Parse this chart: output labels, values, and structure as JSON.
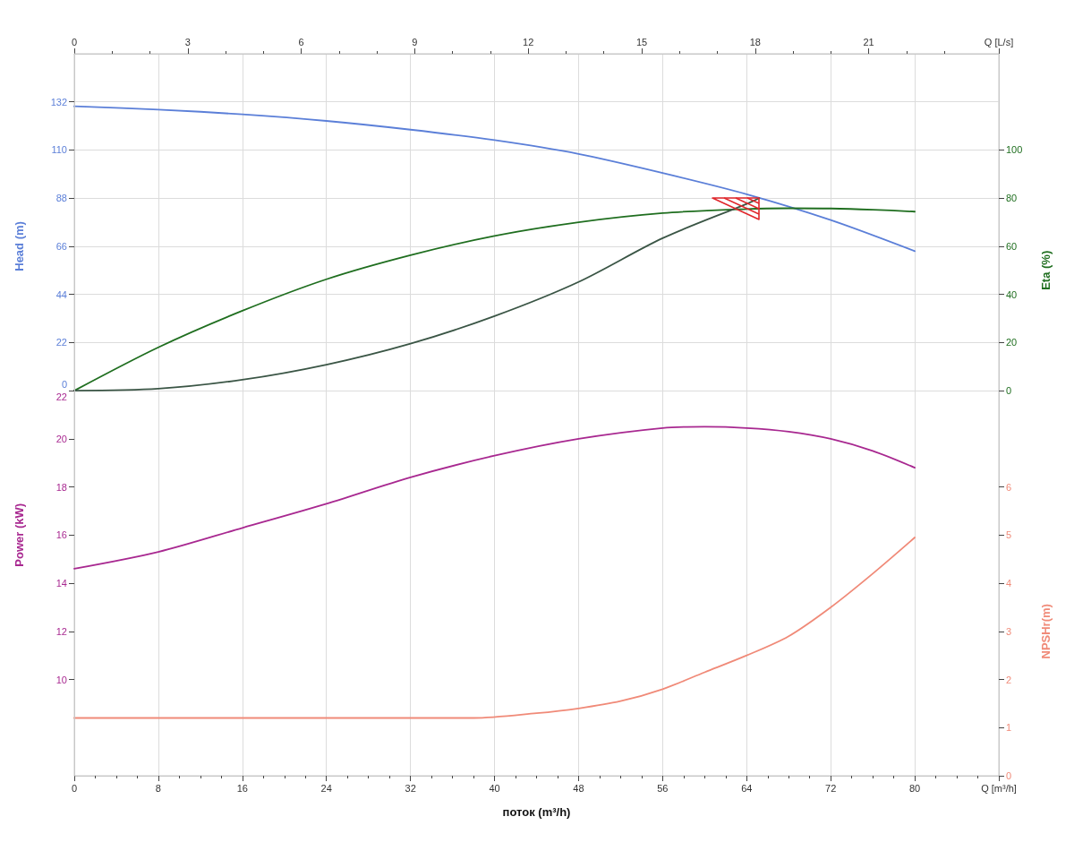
{
  "chart_data": [
    {
      "type": "line",
      "xlabel": "поток (m³/h)",
      "ylabel": "Head (m)",
      "y2label": "Eta (%)",
      "y3label": "NPSHr(m)",
      "grid": true,
      "xlim": [
        0,
        88
      ],
      "xticks": [
        0,
        8,
        16,
        24,
        32,
        40,
        48,
        56,
        64,
        72,
        80,
        {
          "value": 88,
          "label": "Q [m³/h]"
        }
      ],
      "x2lim": [
        0,
        24.44
      ],
      "x2ticks": [
        0,
        3,
        6,
        9,
        12,
        15,
        18,
        21,
        {
          "value": 24.44,
          "label": "Q [L/s]"
        }
      ],
      "ylim": [
        -176,
        154
      ],
      "yticks": [
        0,
        22,
        44,
        66,
        88,
        110,
        132
      ],
      "y2lim": [
        -160,
        140
      ],
      "y2ticks": [
        0,
        20,
        40,
        60,
        80,
        100
      ],
      "y3lim": [
        0,
        15
      ],
      "y3ticks": [
        0,
        1,
        2,
        3,
        4,
        5,
        6
      ],
      "series": [
        {
          "color": "#5b7fd8",
          "x": [
            0,
            8,
            16,
            24,
            32,
            40,
            48,
            56,
            64,
            72,
            80
          ],
          "values": [
            130,
            128.5,
            126.3,
            123.3,
            119.3,
            114.5,
            108.2,
            99.5,
            89.8,
            78,
            63.8
          ]
        },
        {
          "color": "#1f6e1f",
          "axis": "y2",
          "x": [
            0,
            8,
            16,
            24,
            32,
            40,
            48,
            56,
            64,
            68,
            72,
            76,
            80
          ],
          "values": [
            0,
            18,
            33.2,
            46.3,
            56.3,
            64.3,
            70,
            73.8,
            75.5,
            75.8,
            75.7,
            75.2,
            74.4
          ]
        },
        {
          "color": "#3a5545",
          "x": [
            0,
            8,
            16,
            24,
            32,
            40,
            48,
            56,
            64,
            65.2
          ],
          "values": [
            0,
            0.9,
            5,
            11.9,
            21.5,
            34.1,
            49.7,
            69.7,
            85.4,
            88
          ]
        },
        {
          "color": "#f08a78",
          "axis": "y3",
          "x": [
            0,
            8,
            16,
            24,
            32,
            38,
            44,
            48,
            52,
            56,
            60,
            64,
            68,
            72,
            76,
            80
          ],
          "values": [
            1.2,
            1.2,
            1.2,
            1.2,
            1.2,
            1.2,
            1.3,
            1.4,
            1.55,
            1.8,
            2.15,
            2.5,
            2.9,
            3.5,
            4.2,
            4.95
          ]
        }
      ]
    },
    {
      "type": "line",
      "ylabel": "Power (kW)",
      "tick_labels": "y",
      "xlim": [
        0,
        88
      ],
      "ylim": [
        6,
        36
      ],
      "yticks": [
        10,
        12,
        14,
        16,
        18,
        20,
        22
      ],
      "series": [
        {
          "color": "#a82890",
          "x": [
            0,
            8,
            16,
            24,
            32,
            40,
            48,
            56,
            60,
            64,
            68,
            72,
            76,
            80
          ],
          "values": [
            14.6,
            15.3,
            16.3,
            17.3,
            18.4,
            19.3,
            20,
            20.45,
            20.5,
            20.45,
            20.3,
            20,
            19.5,
            18.8
          ]
        }
      ]
    }
  ]
}
